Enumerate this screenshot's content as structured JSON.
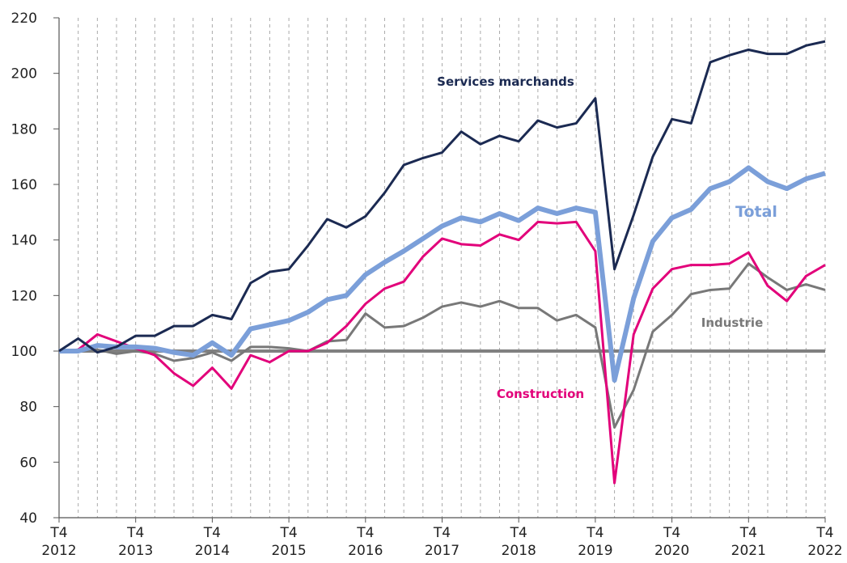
{
  "chart_data": {
    "type": "line",
    "categories": [
      "T4 2012",
      null,
      null,
      null,
      "T4 2013",
      null,
      null,
      null,
      "T4 2014",
      null,
      null,
      null,
      "T4 2015",
      null,
      null,
      null,
      "T4 2016",
      null,
      null,
      null,
      "T4 2017",
      null,
      null,
      null,
      "T4 2018",
      null,
      null,
      null,
      "T4 2019",
      null,
      null,
      null,
      "T4 2020",
      null,
      null,
      null,
      "T4 2021",
      null,
      null,
      null,
      "T4 2022"
    ],
    "series": [
      {
        "name": "Industrie",
        "color": "#787878",
        "width": 3,
        "values": [
          100,
          100,
          100.5,
          99,
          100,
          99,
          96.5,
          97.5,
          99.5,
          96.5,
          101.5,
          101.5,
          101,
          100,
          103.5,
          104,
          113.5,
          108.5,
          109,
          112,
          116,
          117.5,
          116,
          118,
          115.5,
          115.5,
          111,
          113,
          108.5,
          72.5,
          86,
          107,
          113,
          120.5,
          122,
          122.5,
          131.5,
          126.5,
          122,
          124,
          122
        ]
      },
      {
        "name": "Construction",
        "color": "#e2007a",
        "width": 3,
        "values": [
          100,
          100.5,
          106,
          103.5,
          101,
          98.5,
          92,
          87.5,
          94,
          86.5,
          98.5,
          96,
          100,
          100,
          103,
          109,
          117,
          122.5,
          125,
          134,
          140.5,
          138.5,
          138,
          142,
          140,
          146.5,
          146,
          146.5,
          136,
          52.5,
          106,
          122.5,
          129.5,
          131,
          131,
          131.5,
          135.5,
          123.5,
          118,
          127,
          131
        ]
      },
      {
        "name": "Total",
        "color": "#7b9fd9",
        "width": 6,
        "values": [
          100,
          100,
          102,
          101.5,
          101.5,
          101,
          99.5,
          98.5,
          103,
          98.5,
          108,
          109.5,
          111,
          114,
          118.5,
          120,
          127.5,
          132,
          136,
          140.5,
          145,
          148,
          146.5,
          149.5,
          147,
          151.5,
          149.5,
          151.5,
          150,
          89.5,
          119,
          139.5,
          148,
          151,
          158.5,
          161,
          166,
          161,
          158.5,
          162,
          164
        ]
      },
      {
        "name": "Services marchands",
        "color": "#1b2a52",
        "width": 3,
        "values": [
          100,
          104.5,
          99.5,
          101.5,
          105.5,
          105.5,
          109,
          109,
          113,
          111.5,
          124.5,
          128.5,
          129.5,
          138,
          147.5,
          144.5,
          148.5,
          157,
          167,
          169.5,
          171.5,
          179,
          174.5,
          177.5,
          175.5,
          183,
          180.5,
          182,
          191,
          129.5,
          149,
          170,
          183.5,
          182,
          204,
          206.5,
          208.5,
          207,
          207,
          210,
          211.5
        ]
      }
    ],
    "ylim": [
      40,
      220
    ],
    "yticks": [
      40,
      60,
      80,
      100,
      120,
      140,
      160,
      180,
      200,
      220
    ],
    "reference_line": 100,
    "grid": "x-dashed"
  }
}
